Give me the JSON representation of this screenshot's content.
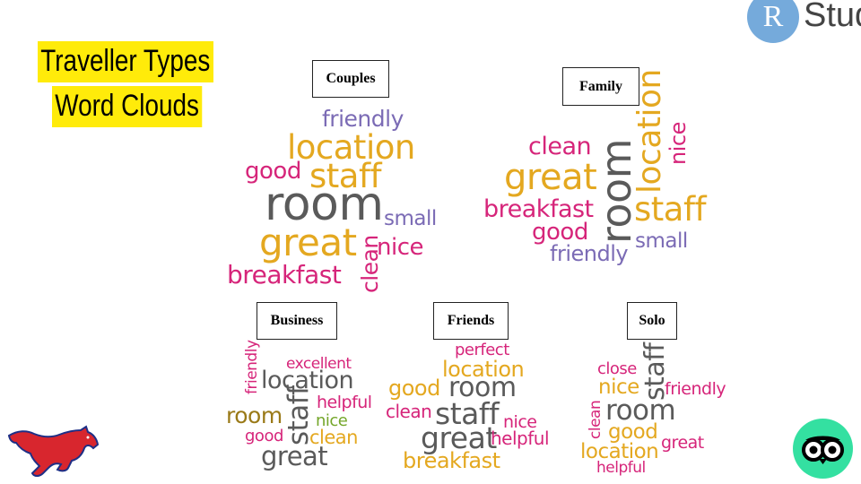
{
  "title": {
    "line1": "Traveller Types",
    "line2": "Word Clouds"
  },
  "logo_rstudio": {
    "letter": "R",
    "text": "Stud"
  },
  "icons": {
    "mustang": "mustang-logo-icon",
    "tripadvisor": "tripadvisor-owl-icon"
  },
  "colors": {
    "title_highlight": "#ffeb0a",
    "gray": "#5a5a5a",
    "gold": "#e4a820",
    "pink": "#d6257a",
    "purple": "#7b6bb5",
    "olive": "#9a7a18",
    "green": "#74a62a"
  },
  "clouds": {
    "couples": {
      "label": "Couples",
      "words": [
        "friendly",
        "location",
        "good",
        "staff",
        "room",
        "small",
        "great",
        "clean",
        "nice",
        "breakfast"
      ]
    },
    "family": {
      "label": "Family",
      "words": [
        "clean",
        "room",
        "location",
        "nice",
        "great",
        "breakfast",
        "staff",
        "good",
        "small",
        "friendly"
      ]
    },
    "business": {
      "label": "Business",
      "words": [
        "friendly",
        "excellent",
        "location",
        "helpful",
        "room",
        "staff",
        "nice",
        "good",
        "clean",
        "great"
      ]
    },
    "friends": {
      "label": "Friends",
      "words": [
        "perfect",
        "location",
        "good",
        "room",
        "clean",
        "staff",
        "nice",
        "great",
        "helpful",
        "breakfast"
      ]
    },
    "solo": {
      "label": "Solo",
      "words": [
        "close",
        "staff",
        "nice",
        "friendly",
        "clean",
        "room",
        "good",
        "great",
        "location",
        "helpful"
      ]
    }
  }
}
